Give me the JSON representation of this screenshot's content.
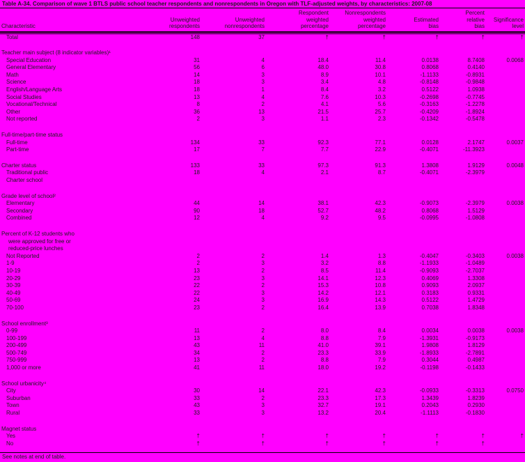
{
  "title": "Table A-34.  Comparison of wave 1 BTLS public school teacher respondents and nonrespondents in Oregon with TLF-adjusted weights, by characteristics: 2007-08",
  "footnote": "See notes at end of table.",
  "colors": {
    "background": "#FF00FF",
    "text": "#1a1a1a",
    "rule": "#000000"
  },
  "symbols": {
    "not_applicable": "†"
  },
  "table": {
    "column_headers": [
      "Characteristic",
      "Unweighted\nrespondents",
      "Unweighted\nnonrespondents",
      "Respondent\nweighted\npercentage",
      "Nonrespondents\nweighted\npercentage",
      "Estimated\nbias",
      "Percent\nrelative\nbias",
      "Significance\nlevel"
    ],
    "rows": [
      {
        "type": "data",
        "label": "Total",
        "values": [
          "148",
          "37",
          "†",
          "†",
          "†",
          "†",
          "†"
        ]
      },
      {
        "type": "spacer"
      },
      {
        "type": "section",
        "label": "Teacher main subject (8 indicator variables)¹",
        "values": []
      },
      {
        "type": "data",
        "label": "Special Education",
        "values": [
          "31",
          "4",
          "18.4",
          "11.4",
          "0.0138",
          "8.7408",
          "0.0068"
        ]
      },
      {
        "type": "data",
        "label": "General Elementary",
        "values": [
          "56",
          "6",
          "48.0",
          "30.8",
          "0.8068",
          "0.4140",
          ""
        ]
      },
      {
        "type": "data",
        "label": "Math",
        "values": [
          "14",
          "3",
          "8.9",
          "10.1",
          "-1.1133",
          "-0.8931",
          ""
        ]
      },
      {
        "type": "data",
        "label": "Science",
        "values": [
          "18",
          "3",
          "3.4",
          "4.8",
          "-0.8148",
          "-0.9848",
          ""
        ]
      },
      {
        "type": "data",
        "label": "English/Language Arts",
        "values": [
          "18",
          "1",
          "8.4",
          "3.2",
          "0.5122",
          "1.0938",
          ""
        ]
      },
      {
        "type": "data",
        "label": "Social Studies",
        "values": [
          "13",
          "4",
          "7.6",
          "10.3",
          "-0.2698",
          "-0.7745",
          ""
        ]
      },
      {
        "type": "data",
        "label": "Vocational/Technical",
        "values": [
          "8",
          "2",
          "4.1",
          "5.6",
          "-0.3163",
          "-1.2278",
          ""
        ]
      },
      {
        "type": "data",
        "label": "Other",
        "values": [
          "36",
          "13",
          "21.5",
          "25.7",
          "-0.4209",
          "-1.8924",
          ""
        ]
      },
      {
        "type": "data",
        "label": "Not reported",
        "values": [
          "2",
          "3",
          "1.1",
          "2.3",
          "-0.1342",
          "-0.5478",
          ""
        ]
      },
      {
        "type": "spacer"
      },
      {
        "type": "section",
        "label": "Full-time/part-time status",
        "values": []
      },
      {
        "type": "data",
        "label": "Full-time",
        "values": [
          "134",
          "33",
          "92.3",
          "77.1",
          "0.0128",
          "2.1747",
          "0.0037"
        ]
      },
      {
        "type": "data",
        "label": "Part-time",
        "values": [
          "17",
          "7",
          "7.7",
          "22.9",
          "-0.4071",
          "-11.3923",
          ""
        ]
      },
      {
        "type": "spacer"
      },
      {
        "type": "section-data",
        "label": "Charter status",
        "values": [
          "133",
          "33",
          "97.3",
          "91.3",
          "1.3808",
          "1.9129",
          "0.0048"
        ]
      },
      {
        "type": "data",
        "label": "Traditional public",
        "values": [
          "18",
          "4",
          "2.1",
          "8.7",
          "-0.4071",
          "-2.3979",
          ""
        ]
      },
      {
        "type": "data",
        "label": "Charter school",
        "values": [
          "",
          "",
          "",
          "",
          "",
          "",
          ""
        ]
      },
      {
        "type": "spacer"
      },
      {
        "type": "section",
        "label": "Grade level of school²",
        "values": []
      },
      {
        "type": "data",
        "label": "Elementary",
        "values": [
          "44",
          "14",
          "38.1",
          "42.3",
          "-0.9073",
          "-2.3979",
          "0.0038"
        ]
      },
      {
        "type": "data",
        "label": "Secondary",
        "values": [
          "90",
          "18",
          "52.7",
          "48.2",
          "0.8068",
          "1.5129",
          ""
        ]
      },
      {
        "type": "data",
        "label": "Combined",
        "values": [
          "12",
          "4",
          "9.2",
          "9.5",
          "-0.0995",
          "-1.0808",
          ""
        ]
      },
      {
        "type": "spacer"
      },
      {
        "type": "section",
        "label": "Percent of K-12 students who",
        "extra_lines": [
          "were approved for free or",
          "reduced-price lunches"
        ],
        "values": []
      },
      {
        "type": "data",
        "label": "Not Reported",
        "values": [
          "2",
          "2",
          "1.4",
          "1.3",
          "-0.4047",
          "-0.3403",
          "0.0038"
        ]
      },
      {
        "type": "data",
        "label": "1-9",
        "values": [
          "2",
          "3",
          "3.2",
          "8.8",
          "-1.1933",
          "-1.0489",
          ""
        ]
      },
      {
        "type": "data",
        "label": "10-19",
        "values": [
          "13",
          "2",
          "8.5",
          "11.4",
          "-0.9093",
          "-2.7037",
          ""
        ]
      },
      {
        "type": "data",
        "label": "20-29",
        "values": [
          "23",
          "3",
          "14.1",
          "12.3",
          "0.4069",
          "1.3308",
          ""
        ]
      },
      {
        "type": "data",
        "label": "30-39",
        "values": [
          "22",
          "2",
          "15.3",
          "10.8",
          "0.9093",
          "2.0937",
          ""
        ]
      },
      {
        "type": "data",
        "label": "40-49",
        "values": [
          "22",
          "3",
          "14.2",
          "12.1",
          "0.3183",
          "0.9331",
          ""
        ]
      },
      {
        "type": "data",
        "label": "50-69",
        "values": [
          "24",
          "3",
          "16.9",
          "14.3",
          "0.5122",
          "1.4729",
          ""
        ]
      },
      {
        "type": "data",
        "label": "70-100",
        "values": [
          "23",
          "2",
          "16.4",
          "13.9",
          "0.7038",
          "1.8348",
          ""
        ]
      },
      {
        "type": "spacer"
      },
      {
        "type": "section",
        "label": "School enrollment³",
        "values": []
      },
      {
        "type": "data",
        "label": "0-99",
        "values": [
          "11",
          "2",
          "8.0",
          "8.4",
          "0.0034",
          "0.0038",
          "0.0038"
        ]
      },
      {
        "type": "data",
        "label": "100-199",
        "values": [
          "13",
          "4",
          "8.8",
          "7.9",
          "-1.3931",
          "-0.9173",
          ""
        ]
      },
      {
        "type": "data",
        "label": "200-499",
        "values": [
          "43",
          "11",
          "41.0",
          "39.1",
          "1.9808",
          "1.8129",
          ""
        ]
      },
      {
        "type": "data",
        "label": "500-749",
        "values": [
          "34",
          "2",
          "23.3",
          "33.9",
          "-1.8933",
          "-2.7891",
          ""
        ]
      },
      {
        "type": "data",
        "label": "750-999",
        "values": [
          "13",
          "2",
          "8.8",
          "7.9",
          "0.3044",
          "0.4987",
          ""
        ]
      },
      {
        "type": "data",
        "label": "1,000 or more",
        "values": [
          "41",
          "11",
          "18.0",
          "19.2",
          "-0.1198",
          "-0.1433",
          ""
        ]
      },
      {
        "type": "spacer"
      },
      {
        "type": "section",
        "label": "School urbanicity⁴",
        "values": []
      },
      {
        "type": "data",
        "label": "City",
        "values": [
          "30",
          "14",
          "22.1",
          "42.3",
          "-0.0933",
          "-0.3313",
          "0.0750"
        ]
      },
      {
        "type": "data",
        "label": "Suburban",
        "values": [
          "33",
          "2",
          "23.3",
          "17.3",
          "1.3439",
          "1.8239",
          ""
        ]
      },
      {
        "type": "data",
        "label": "Town",
        "values": [
          "43",
          "3",
          "32.7",
          "19.1",
          "0.2043",
          "0.2930",
          ""
        ]
      },
      {
        "type": "data",
        "label": "Rural",
        "values": [
          "33",
          "3",
          "13.2",
          "20.4",
          "-1.1113",
          "-0.1830",
          ""
        ]
      },
      {
        "type": "spacer"
      },
      {
        "type": "section",
        "label": "Magnet status",
        "values": []
      },
      {
        "type": "data",
        "label": "Yes",
        "values": [
          "†",
          "†",
          "†",
          "†",
          "†",
          "†",
          "†"
        ]
      },
      {
        "type": "data",
        "label": "No",
        "values": [
          "†",
          "†",
          "†",
          "†",
          "†",
          "†",
          ""
        ]
      }
    ]
  }
}
